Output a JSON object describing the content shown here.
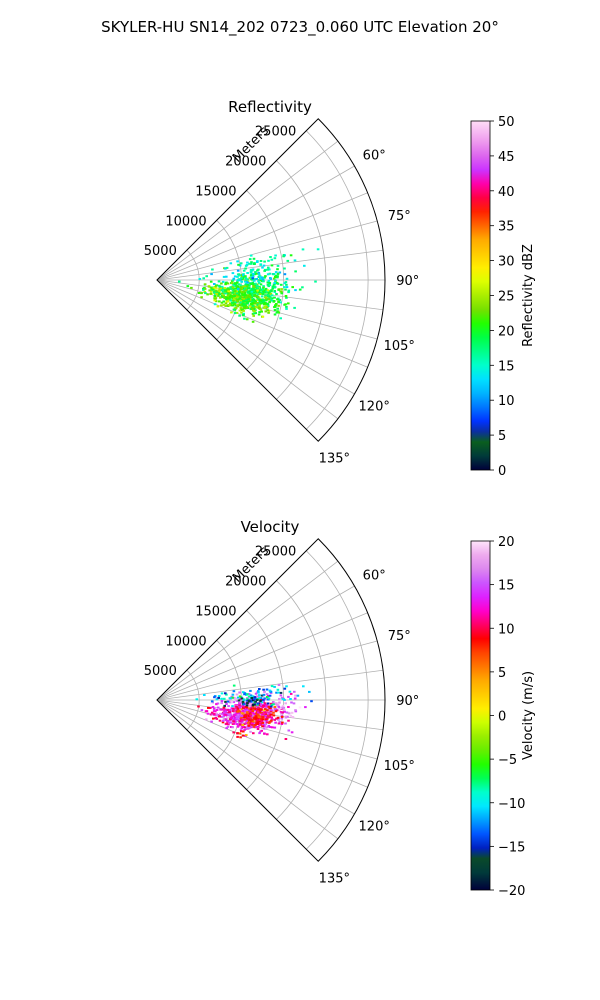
{
  "suptitle": "SKYLER-HU  SN14_202  0723_0.060 UTC Elevation 20°",
  "chart_data": [
    {
      "type": "polar-sector",
      "title": "Reflectivity",
      "radial_label": "Meters",
      "r_ticks": [
        5000,
        10000,
        15000,
        20000,
        25000
      ],
      "r_tick_labels": [
        "5000",
        "10000",
        "15000",
        "20000",
        "25000"
      ],
      "rlim": [
        0,
        27000
      ],
      "theta_range_deg": [
        45,
        135
      ],
      "theta_ticks": [
        60,
        75,
        90,
        105,
        120,
        135
      ],
      "theta_tick_labels": [
        "60°",
        "75°",
        "90°",
        "105°",
        "120°",
        "135°"
      ],
      "grid": true,
      "colorbar": {
        "label": "Reflectivity dBZ",
        "range": [
          0,
          50
        ],
        "ticks": [
          0,
          5,
          10,
          15,
          20,
          25,
          30,
          35,
          40,
          45,
          50
        ],
        "tick_labels": [
          "0",
          "5",
          "10",
          "15",
          "20",
          "25",
          "30",
          "35",
          "40",
          "45",
          "50"
        ]
      },
      "echo_regions": [
        {
          "az_center": 97,
          "r_center": 11500,
          "az_spread": 5,
          "r_spread": 2200,
          "value": 19,
          "count": 420
        },
        {
          "az_center": 103,
          "r_center": 10000,
          "az_spread": 4,
          "r_spread": 2000,
          "value": 22,
          "count": 360
        },
        {
          "az_center": 88,
          "r_center": 11500,
          "az_spread": 3,
          "r_spread": 2500,
          "value": 14,
          "count": 90
        },
        {
          "az_center": 80,
          "r_center": 12000,
          "az_spread": 2,
          "r_spread": 2500,
          "value": 16,
          "count": 40
        },
        {
          "az_center": 112,
          "r_center": 10500,
          "az_spread": 1,
          "r_spread": 600,
          "value": 20,
          "count": 8
        }
      ]
    },
    {
      "type": "polar-sector",
      "title": "Velocity",
      "radial_label": "Meters",
      "r_ticks": [
        5000,
        10000,
        15000,
        20000,
        25000
      ],
      "r_tick_labels": [
        "5000",
        "10000",
        "15000",
        "20000",
        "25000"
      ],
      "rlim": [
        0,
        27000
      ],
      "theta_range_deg": [
        45,
        135
      ],
      "theta_ticks": [
        60,
        75,
        90,
        105,
        120,
        135
      ],
      "theta_tick_labels": [
        "60°",
        "75°",
        "90°",
        "105°",
        "120°",
        "135°"
      ],
      "grid": true,
      "colorbar": {
        "label": "Velocity (m/s)",
        "range": [
          -20,
          20
        ],
        "ticks": [
          -20,
          -15,
          -10,
          -5,
          0,
          5,
          10,
          15,
          20
        ],
        "tick_labels": [
          "−20",
          "−15",
          "−10",
          "−5",
          "0",
          "5",
          "10",
          "15",
          "20"
        ]
      },
      "echo_regions": [
        {
          "az_center": 95,
          "r_center": 12000,
          "az_spread": 4,
          "r_spread": 2000,
          "value": 16,
          "count": 360
        },
        {
          "az_center": 102,
          "r_center": 10000,
          "az_spread": 4,
          "r_spread": 1800,
          "value": 13,
          "count": 330
        },
        {
          "az_center": 99,
          "r_center": 12000,
          "az_spread": 3,
          "r_spread": 1200,
          "value": 9,
          "count": 200
        },
        {
          "az_center": 88,
          "r_center": 11500,
          "az_spread": 3,
          "r_spread": 2500,
          "value": -11,
          "count": 90
        },
        {
          "az_center": 91,
          "r_center": 11000,
          "az_spread": 1.5,
          "r_spread": 700,
          "value": -16,
          "count": 25
        },
        {
          "az_center": 112,
          "r_center": 10500,
          "az_spread": 1,
          "r_spread": 600,
          "value": 7,
          "count": 8
        }
      ]
    }
  ]
}
